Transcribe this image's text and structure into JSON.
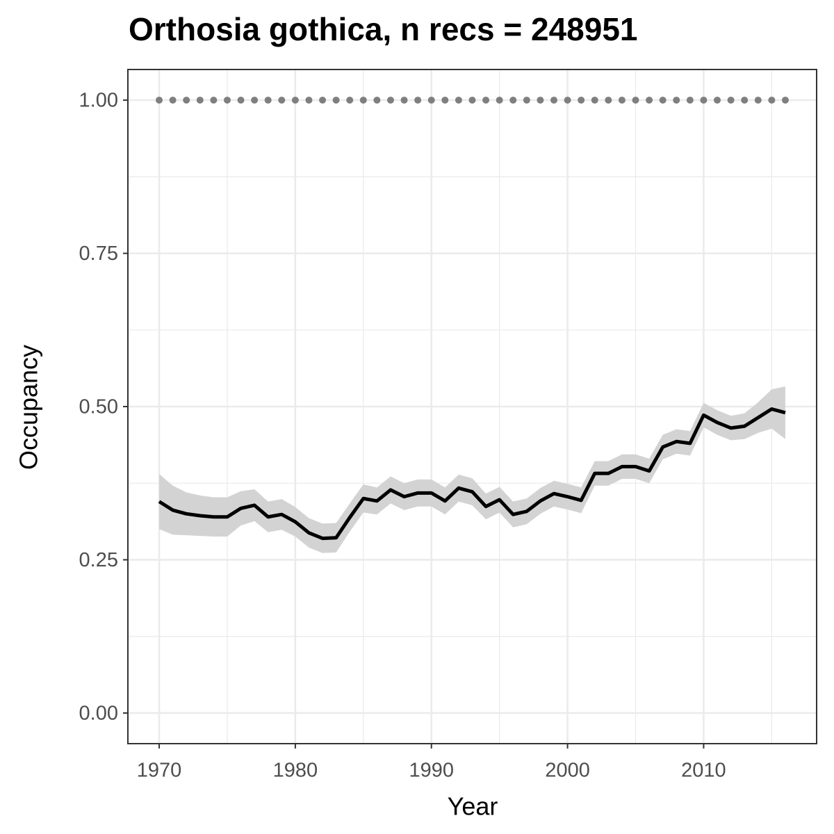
{
  "chart_data": {
    "type": "line",
    "title": "Orthosia gothica, n recs = 248951",
    "x_label": "Year",
    "y_label": "Occupancy",
    "x": [
      1970,
      1971,
      1972,
      1973,
      1974,
      1975,
      1976,
      1977,
      1978,
      1979,
      1980,
      1981,
      1982,
      1983,
      1984,
      1985,
      1986,
      1987,
      1988,
      1989,
      1990,
      1991,
      1992,
      1993,
      1994,
      1995,
      1996,
      1997,
      1998,
      1999,
      2000,
      2001,
      2002,
      2003,
      2004,
      2005,
      2006,
      2007,
      2008,
      2009,
      2010,
      2011,
      2012,
      2013,
      2014,
      2015,
      2016
    ],
    "series": [
      {
        "color": "#000000",
        "band_color": "#d3d3d3",
        "values": [
          0.345,
          0.331,
          0.325,
          0.322,
          0.32,
          0.32,
          0.334,
          0.339,
          0.32,
          0.324,
          0.312,
          0.294,
          0.285,
          0.286,
          0.319,
          0.35,
          0.346,
          0.364,
          0.353,
          0.359,
          0.359,
          0.346,
          0.367,
          0.361,
          0.337,
          0.348,
          0.324,
          0.329,
          0.346,
          0.358,
          0.353,
          0.347,
          0.391,
          0.391,
          0.402,
          0.402,
          0.395,
          0.434,
          0.443,
          0.44,
          0.486,
          0.474,
          0.465,
          0.468,
          0.482,
          0.496,
          0.49
        ],
        "lower": [
          0.3,
          0.291,
          0.29,
          0.289,
          0.288,
          0.288,
          0.306,
          0.313,
          0.295,
          0.299,
          0.288,
          0.27,
          0.261,
          0.262,
          0.296,
          0.327,
          0.324,
          0.342,
          0.331,
          0.337,
          0.337,
          0.324,
          0.345,
          0.339,
          0.316,
          0.327,
          0.303,
          0.308,
          0.325,
          0.337,
          0.332,
          0.326,
          0.371,
          0.371,
          0.382,
          0.382,
          0.375,
          0.414,
          0.423,
          0.42,
          0.466,
          0.454,
          0.445,
          0.447,
          0.457,
          0.464,
          0.447
        ],
        "upper": [
          0.39,
          0.371,
          0.36,
          0.355,
          0.352,
          0.352,
          0.362,
          0.365,
          0.345,
          0.349,
          0.336,
          0.318,
          0.309,
          0.31,
          0.342,
          0.373,
          0.368,
          0.386,
          0.375,
          0.381,
          0.381,
          0.368,
          0.389,
          0.383,
          0.358,
          0.369,
          0.345,
          0.35,
          0.367,
          0.379,
          0.374,
          0.368,
          0.411,
          0.411,
          0.422,
          0.422,
          0.415,
          0.454,
          0.463,
          0.46,
          0.506,
          0.494,
          0.485,
          0.489,
          0.507,
          0.528,
          0.533
        ]
      },
      {
        "color": "#7f7f7f",
        "style": "dotted",
        "values": [
          1,
          1,
          1,
          1,
          1,
          1,
          1,
          1,
          1,
          1,
          1,
          1,
          1,
          1,
          1,
          1,
          1,
          1,
          1,
          1,
          1,
          1,
          1,
          1,
          1,
          1,
          1,
          1,
          1,
          1,
          1,
          1,
          1,
          1,
          1,
          1,
          1,
          1,
          1,
          1,
          1,
          1,
          1,
          1,
          1,
          1,
          1
        ]
      }
    ],
    "xlim": [
      1967.7,
      2018.3
    ],
    "ylim": [
      -0.05,
      1.05
    ],
    "xticks": [
      1970,
      1980,
      1990,
      2000,
      2010
    ],
    "yticks": [
      {
        "value": 0,
        "label": "0.00"
      },
      {
        "value": 0.25,
        "label": "0.25"
      },
      {
        "value": 0.5,
        "label": "0.50"
      },
      {
        "value": 0.75,
        "label": "0.75"
      },
      {
        "value": 1,
        "label": "1.00"
      }
    ],
    "x_minor_ticks": [
      1975,
      1985,
      1995,
      2005,
      2015
    ],
    "y_minor_ticks": [
      0.125,
      0.375,
      0.625,
      0.875
    ],
    "grid": true
  }
}
